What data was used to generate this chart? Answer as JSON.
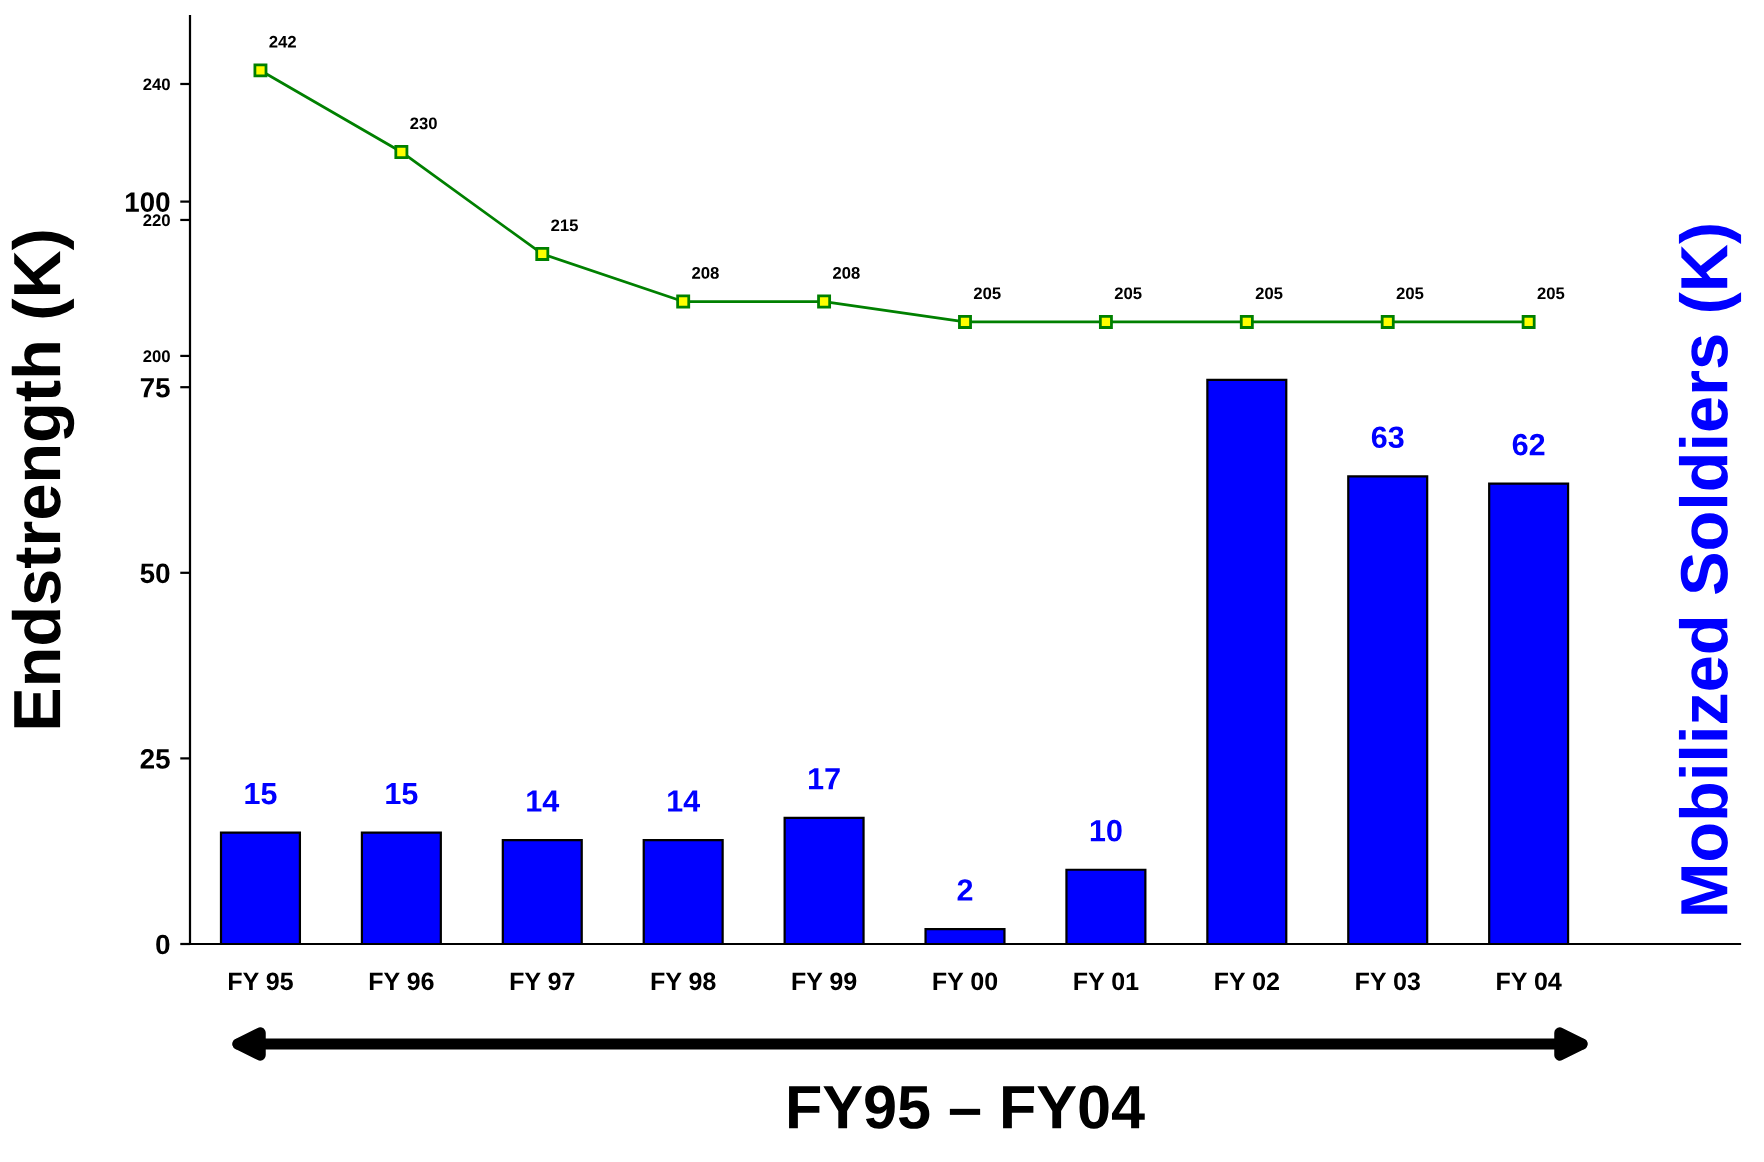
{
  "chart_data": {
    "type": "bar",
    "categories": [
      "FY 95",
      "FY 96",
      "FY 97",
      "FY 98",
      "FY 99",
      "FY 00",
      "FY 01",
      "FY 02",
      "FY 03",
      "FY 04",
      null
    ],
    "xlabel": "FY95 – FY04",
    "ylabel": "Endstrength (K)",
    "y2label": "Mobilized Soldiers (K)",
    "series": [
      {
        "color": "#0000ff",
        "values": [
          15,
          15,
          14,
          14,
          17,
          2,
          10,
          76,
          63,
          62,
          null
        ],
        "value_labels": [
          "15",
          "15",
          "14",
          "14",
          "17",
          "2",
          "10",
          null,
          "63",
          "62",
          null
        ]
      },
      {
        "type": "line",
        "axis": "y2",
        "color": "#008000",
        "marker": "square",
        "line_style": "solid",
        "values": [
          242,
          230,
          215,
          208,
          208,
          205,
          205,
          205,
          205,
          205,
          null
        ],
        "value_labels": [
          "242",
          "230",
          "215",
          "208",
          "208",
          "205",
          "205",
          "205",
          "205",
          "205",
          null
        ]
      }
    ],
    "ylim": [
      0,
      125
    ],
    "yticks": [
      0,
      25,
      50,
      75,
      100
    ],
    "y2lim": [
      113.5,
      250
    ],
    "y2ticks": [
      200,
      220,
      240
    ],
    "grid": false,
    "legend": false
  }
}
